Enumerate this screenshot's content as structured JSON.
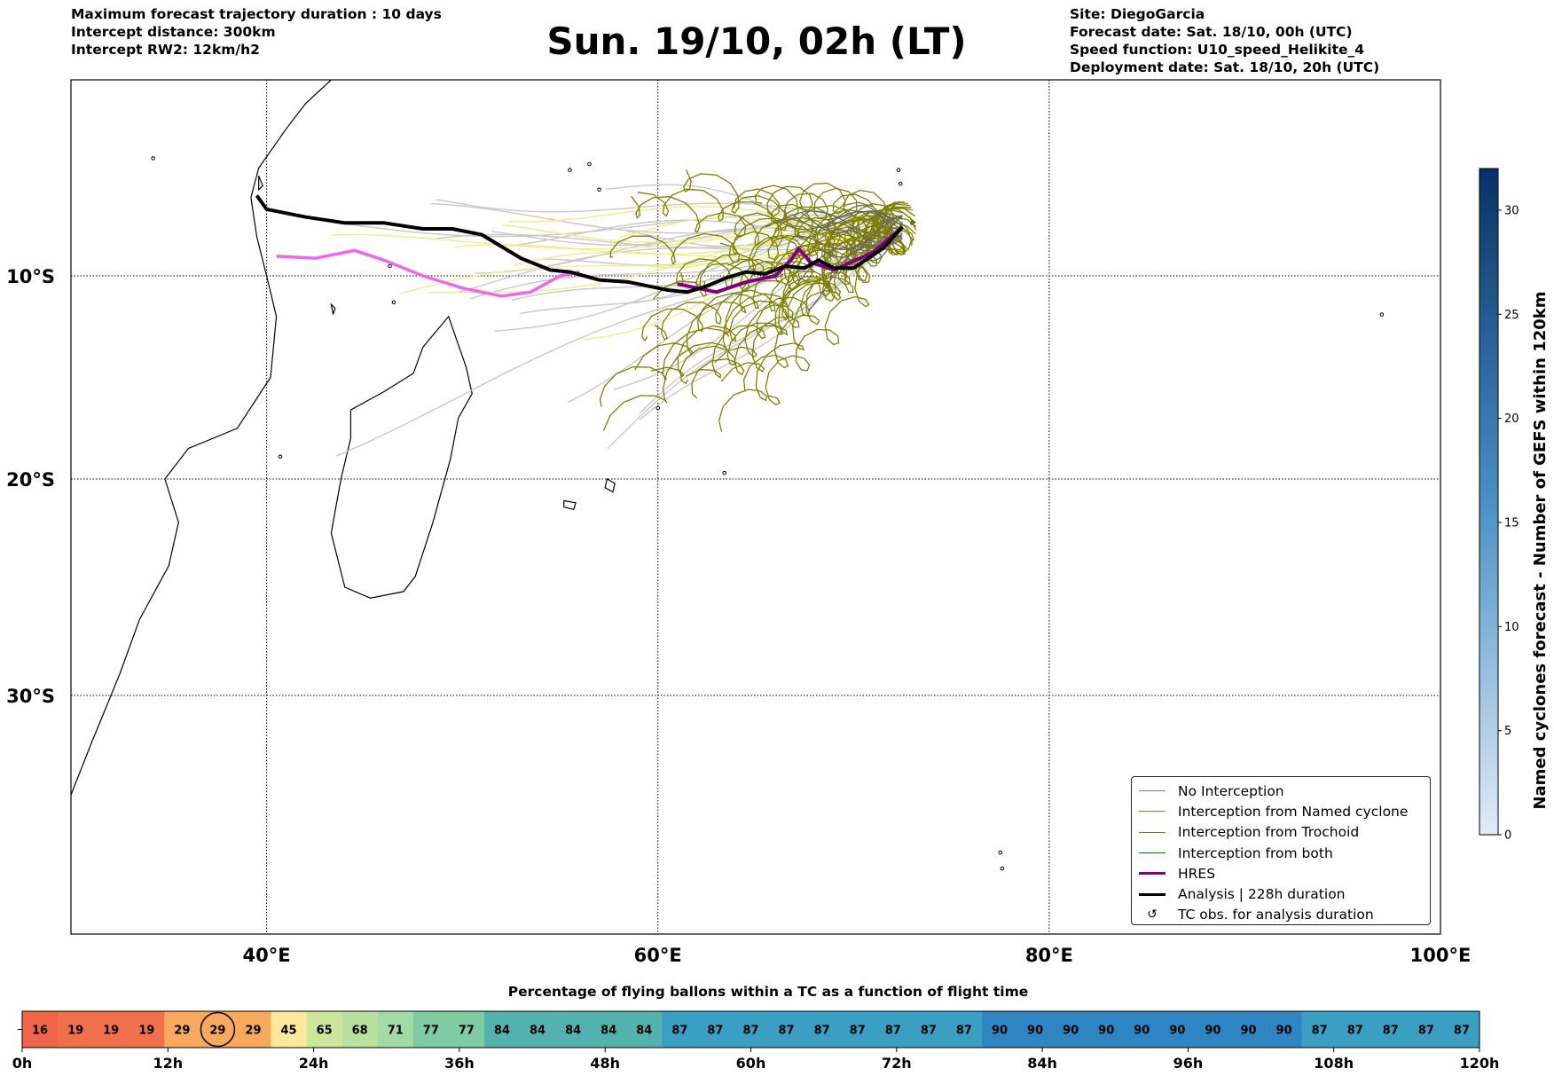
{
  "header": {
    "left": [
      "Maximum forecast trajectory duration : 10 days",
      "Intercept distance: 300km",
      "Intercept RW2: 12km/h2"
    ],
    "title": "Sun. 19/10, 02h (LT)",
    "right": [
      "Site: DiegoGarcia",
      "Forecast date: Sat. 18/10, 00h (UTC)",
      "Speed function: U10_speed_Helikite_4",
      "Deployment date: Sat. 18/10, 20h (UTC)"
    ]
  },
  "legend": {
    "items": [
      {
        "label": "No Interception",
        "color": "#777777",
        "style": "thin"
      },
      {
        "label": "Interception from Named cyclone",
        "color": "#ff5500",
        "style": "thin"
      },
      {
        "label": "Interception from Trochoid",
        "color": "#808000",
        "style": "thin"
      },
      {
        "label": "Interception from both",
        "color": "#008000",
        "style": "thin"
      },
      {
        "label": "HRES",
        "color": "#800080",
        "style": "thick"
      },
      {
        "label": "Analysis | 228h duration",
        "color": "#000000",
        "style": "thick"
      },
      {
        "label": "TC obs. for analysis duration",
        "color": "#000000",
        "style": "marker",
        "marker": "↺"
      }
    ]
  },
  "colors": {
    "grey_tracks": "#c8c8c8",
    "yellow_tracks": "#eeee88",
    "olive_tracks": "#808000",
    "dark_grey_tracks": "#666666",
    "magenta": "#ee66ee",
    "hres": "#800080",
    "analysis": "#000000",
    "coast": "#000000"
  },
  "chart_data": [
    {
      "type": "map",
      "title": "Sun. 19/10, 02h (LT)",
      "lon_range": [
        30,
        100
      ],
      "lat_range": [
        -42,
        0
      ],
      "xticks": [
        40,
        60,
        80,
        100
      ],
      "xtick_labels": [
        "40°E",
        "60°E",
        "80°E",
        "100°E"
      ],
      "yticks": [
        -10,
        -20,
        -30
      ],
      "ytick_labels": [
        "10°S",
        "20°S",
        "30°S"
      ],
      "grid": true,
      "hres_track": [
        [
          72.5,
          -7.5
        ],
        [
          71,
          -8.8
        ],
        [
          69,
          -9.7
        ],
        [
          67.8,
          -9.3
        ],
        [
          67.2,
          -8.6
        ],
        [
          66.8,
          -9.2
        ],
        [
          66,
          -10
        ],
        [
          64.5,
          -10.3
        ],
        [
          63,
          -10.8
        ],
        [
          62,
          -10.6
        ],
        [
          61,
          -10.4
        ]
      ],
      "magenta_track": [
        [
          40.5,
          -9
        ],
        [
          42.5,
          -9.1
        ],
        [
          44.5,
          -8.7
        ],
        [
          46,
          -9.2
        ],
        [
          48,
          -10
        ],
        [
          50,
          -10.6
        ],
        [
          52,
          -11
        ],
        [
          53.5,
          -10.8
        ],
        [
          55,
          -10
        ],
        [
          56,
          -9.8
        ]
      ],
      "analysis_track": [
        [
          72.5,
          -7.5
        ],
        [
          71.5,
          -8.6
        ],
        [
          70,
          -9.6
        ],
        [
          69,
          -9.6
        ],
        [
          68.2,
          -9.2
        ],
        [
          67.5,
          -9.6
        ],
        [
          66.5,
          -9.5
        ],
        [
          65.5,
          -9.9
        ],
        [
          64.5,
          -9.8
        ],
        [
          63.5,
          -10.1
        ],
        [
          62.5,
          -10.5
        ],
        [
          61.5,
          -10.8
        ],
        [
          60.5,
          -10.7
        ],
        [
          59.5,
          -10.5
        ],
        [
          58.5,
          -10.3
        ],
        [
          57,
          -10.2
        ],
        [
          55.5,
          -9.8
        ],
        [
          54.5,
          -9.7
        ],
        [
          53,
          -9.1
        ],
        [
          51,
          -7.9
        ],
        [
          49.5,
          -7.6
        ],
        [
          48,
          -7.6
        ],
        [
          46,
          -7.3
        ],
        [
          44,
          -7.3
        ],
        [
          42,
          -7
        ],
        [
          40,
          -6.6
        ],
        [
          39.5,
          -5.9
        ]
      ],
      "legend_position": "lower-right"
    },
    {
      "type": "colorbar",
      "label": "Named cyclones forecast - Number of GEFS within 120km",
      "range": [
        0,
        32
      ],
      "ticks": [
        0,
        5,
        10,
        15,
        20,
        25,
        30
      ],
      "colors": [
        "#e1ebf7",
        "#08306b"
      ]
    },
    {
      "type": "heatmap",
      "title": "Percentage of flying ballons within a TC as a function of flight time",
      "values": [
        16,
        19,
        19,
        19,
        29,
        29,
        29,
        45,
        65,
        68,
        71,
        77,
        77,
        84,
        84,
        84,
        84,
        84,
        87,
        87,
        87,
        87,
        87,
        87,
        87,
        87,
        87,
        90,
        90,
        90,
        90,
        90,
        90,
        90,
        90,
        90,
        87,
        87,
        87,
        87,
        87
      ],
      "highlight_index": 5,
      "xticks": [
        0,
        12,
        24,
        36,
        48,
        60,
        72,
        84,
        96,
        108,
        120
      ],
      "xtick_labels": [
        "0h",
        "12h",
        "24h",
        "36h",
        "48h",
        "60h",
        "72h",
        "84h",
        "96h",
        "108h",
        "120h"
      ],
      "x_range": [
        0,
        120
      ]
    }
  ]
}
